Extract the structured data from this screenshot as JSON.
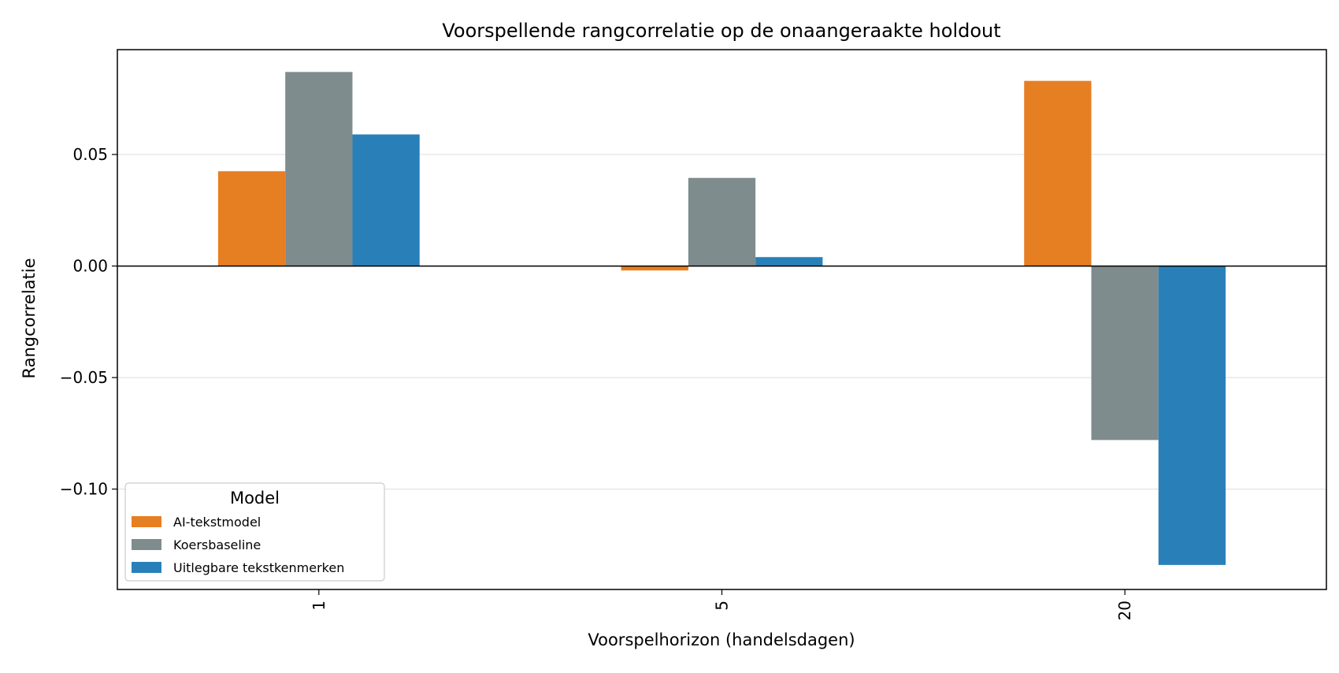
{
  "chart_data": {
    "type": "bar",
    "title": "Voorspellende rangcorrelatie op de onaangeraakte holdout",
    "xlabel": "Voorspelhorizon (handelsdagen)",
    "ylabel": "Rangcorrelatie",
    "categories": [
      "1",
      "5",
      "20"
    ],
    "series": [
      {
        "name": "AI-tekstmodel",
        "color": "#e67e22",
        "values": [
          0.0425,
          -0.002,
          0.083
        ]
      },
      {
        "name": "Koersbaseline",
        "color": "#7f8c8d",
        "values": [
          0.087,
          0.0395,
          -0.078
        ]
      },
      {
        "name": "Uitlegbare tekstkenmerken",
        "color": "#2980b9",
        "values": [
          0.059,
          0.004,
          -0.134
        ]
      }
    ],
    "ylim": [
      -0.145,
      0.097
    ],
    "yticks": [
      0.05,
      0.0,
      -0.05,
      -0.1
    ],
    "ytick_labels": [
      "0.05",
      "0.00",
      "−0.05",
      "−0.10"
    ],
    "legend": {
      "title": "Model",
      "placement": "lower-left"
    },
    "grid": "horizontal",
    "zero_line": true
  }
}
